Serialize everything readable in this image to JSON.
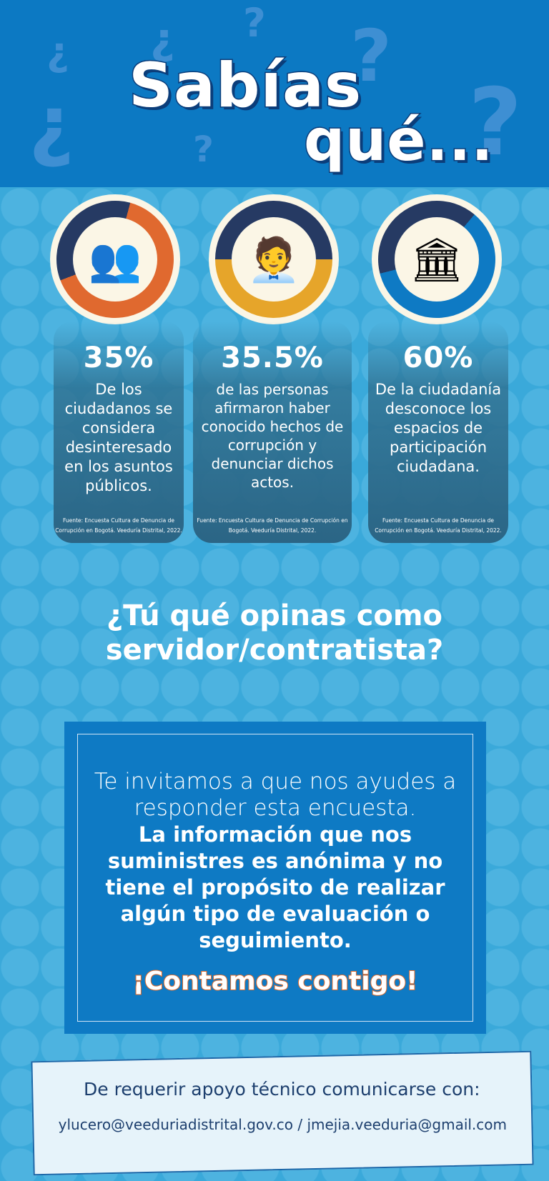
{
  "header": {
    "title_line1": "Sabías",
    "title_line2": "qué..."
  },
  "stats": [
    {
      "icon": "citizens-icon",
      "value_text": "35%",
      "percent": 35,
      "description": "De los ciudadanos se considera desinteresado en los asuntos públicos.",
      "source": "Fuente: Encuesta Cultura de Denuncia de Corrupción en Bogotá. Veeduría Distrital, 2022.",
      "ring_color": "#e0692f"
    },
    {
      "icon": "public-servant-icon",
      "value_text": "35.5%",
      "percent": 35.5,
      "description": "de las personas afirmaron haber conocido hechos de corrupción y denunciar dichos actos.",
      "source": "Fuente: Encuesta Cultura de Denuncia de Corrupción en Bogotá. Veeduría Distrital, 2022.",
      "ring_color": "#e6a52a"
    },
    {
      "icon": "capitol-building-icon",
      "value_text": "60%",
      "percent": 60,
      "description": "De la ciudadanía desconoce los espacios de participación ciudadana.",
      "source": "Fuente: Encuesta Cultura de Denuncia de Corrupción en Bogotá. Veeduría Distrital, 2022.",
      "ring_color": "#0e7ac4"
    }
  ],
  "question": {
    "line1": "¿Tú qué opinas como",
    "line2": "servidor/contratista?"
  },
  "invite": {
    "normal": "Te invitamos a que nos ayudes a responder esta encuesta.",
    "bold": "La información que nos suministres es anónima y no tiene el propósito de realizar algún tipo de evaluación o seguimiento.",
    "cta": "¡Contamos contigo!"
  },
  "contact": {
    "label": "De requerir apoyo técnico comunicarse con:",
    "emails": "ylucero@veeduriadistrital.gov.co / jmejia.veeduria@gmail.com"
  },
  "colors": {
    "header": "#0c79c3",
    "background": "#3aa9da",
    "navy": "#263a63"
  }
}
